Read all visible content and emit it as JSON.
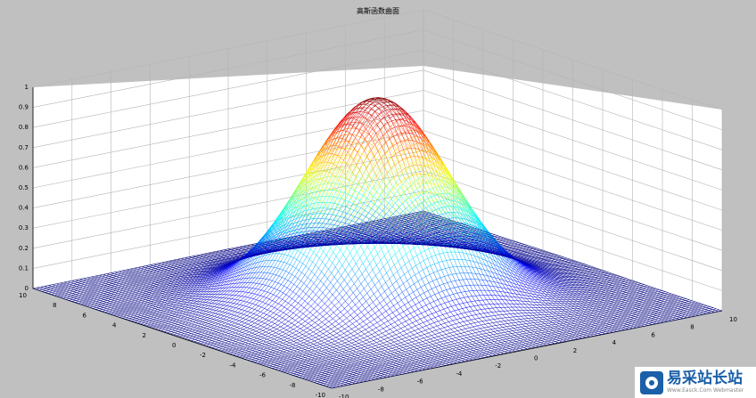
{
  "chart_data": {
    "type": "surface",
    "title": "高斯函数曲面",
    "function": "z = exp(-(x^2 + y^2) / 18)",
    "x": {
      "min": -10,
      "max": 10,
      "step": 0.2
    },
    "y": {
      "min": -10,
      "max": 10,
      "step": 0.2
    },
    "zlim": [
      0,
      1
    ],
    "peak": {
      "x": 0,
      "y": 0,
      "z": 1
    },
    "colormap": "jet",
    "grid": true,
    "z_ticks": [
      "0",
      "0.1",
      "0.2",
      "0.3",
      "0.4",
      "0.5",
      "0.6",
      "0.7",
      "0.8",
      "0.9",
      "1"
    ],
    "left_axis_ticks": [
      "10",
      "8",
      "6",
      "4",
      "2",
      "0",
      "-2",
      "-4",
      "-6",
      "-8",
      "-10"
    ],
    "right_axis_ticks": [
      "-10",
      "-8",
      "-6",
      "-4",
      "-2",
      "0",
      "2",
      "4",
      "6",
      "8",
      "10"
    ]
  },
  "watermark": {
    "main": "易采站长站",
    "sub": "Www.Easck.Com  Webmaster"
  },
  "colors": {
    "background": "#c0c0c0",
    "axes_background": "#ffffff",
    "grid": "#b4b4b4",
    "watermark_blue": "#1a5fa8"
  }
}
